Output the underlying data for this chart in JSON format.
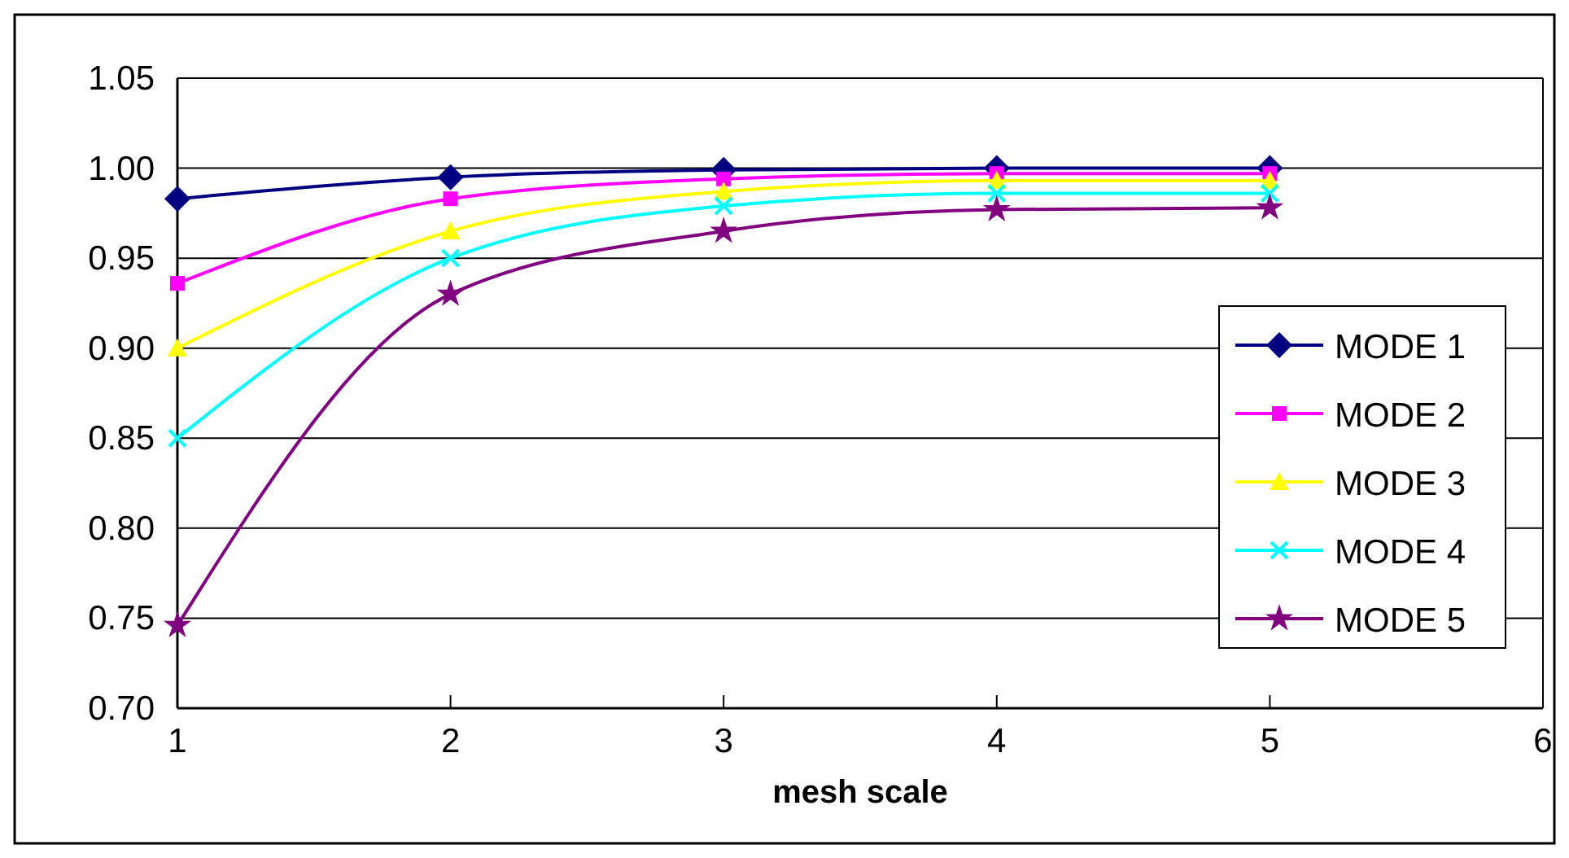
{
  "chart_data": {
    "type": "line",
    "xlabel": "mesh scale",
    "x": [
      1,
      2,
      3,
      4,
      5
    ],
    "xlim": [
      1,
      6
    ],
    "xticks": [
      1,
      2,
      3,
      4,
      5,
      6
    ],
    "ylim": [
      0.7,
      1.05
    ],
    "yticks": [
      {
        "value": 0.7,
        "label": "0.70"
      },
      {
        "value": 0.75,
        "label": "0.75"
      },
      {
        "value": 0.8,
        "label": "0.80"
      },
      {
        "value": 0.85,
        "label": "0.85"
      },
      {
        "value": 0.9,
        "label": "0.90"
      },
      {
        "value": 0.95,
        "label": "0.95"
      },
      {
        "value": 1.0,
        "label": "1.00"
      },
      {
        "value": 1.05,
        "label": "1.05"
      }
    ],
    "grid": "y",
    "legend": "right",
    "line_style": "solid",
    "series": [
      {
        "name": "MODE 1",
        "color": "#000080",
        "marker": "diamond",
        "values": [
          0.983,
          0.995,
          0.999,
          1.0,
          1.0
        ]
      },
      {
        "name": "MODE 2",
        "color": "#ff00ff",
        "marker": "square",
        "values": [
          0.936,
          0.983,
          0.994,
          0.997,
          0.997
        ]
      },
      {
        "name": "MODE 3",
        "color": "#ffff00",
        "marker": "triangle",
        "values": [
          0.9,
          0.965,
          0.987,
          0.993,
          0.993
        ]
      },
      {
        "name": "MODE 4",
        "color": "#00ffff",
        "marker": "cross",
        "values": [
          0.85,
          0.95,
          0.979,
          0.986,
          0.986
        ]
      },
      {
        "name": "MODE 5",
        "color": "#800080",
        "marker": "star",
        "values": [
          0.746,
          0.93,
          0.965,
          0.977,
          0.978
        ]
      }
    ]
  }
}
